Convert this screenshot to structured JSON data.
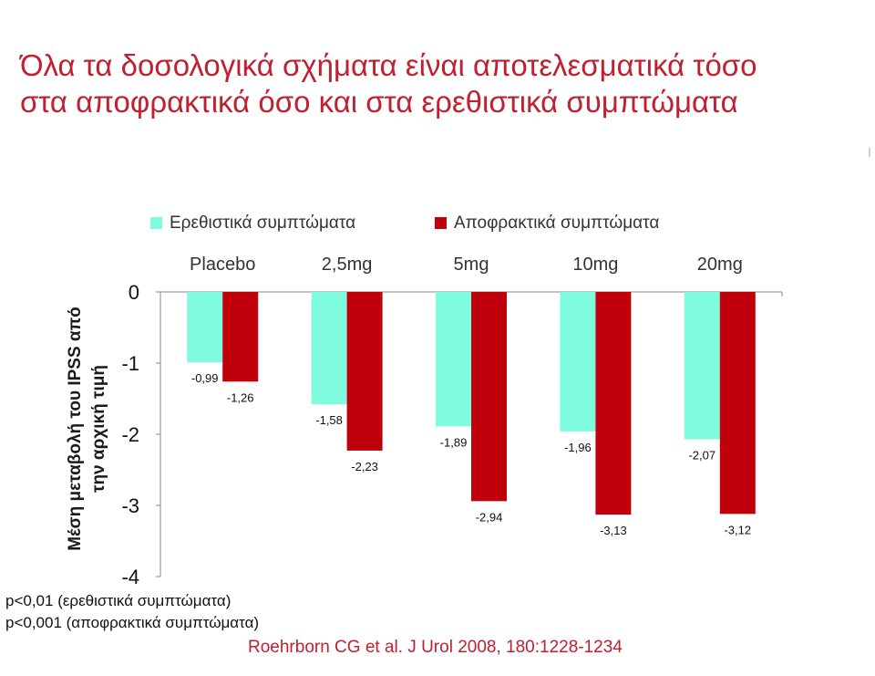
{
  "slide": {
    "title_line1": "Όλα τα δοσολογικά σχήματα είναι αποτελεσματικά τόσο",
    "title_line2": "στα αποφρακτικά όσο και στα ερεθιστικά συμπτώματα",
    "footnote_line1": "p<0,01 (ερεθιστικά συμπτώματα)",
    "footnote_line2": "p<0,001 (αποφρακτικά συμπτώματα)",
    "citation": "Roehrborn CG et al. J Urol 2008, 180:1228-1234"
  },
  "chart_data": {
    "type": "bar",
    "categories": [
      "Placebo",
      "2,5mg",
      "5mg",
      "10mg",
      "20mg"
    ],
    "series": [
      {
        "name": "Ερεθιστικά συμπτώματα",
        "color": "#7ffbe0",
        "values": [
          -0.99,
          -1.58,
          -1.89,
          -1.96,
          -2.07
        ],
        "labels": [
          "-0,99",
          "-1,58",
          "-1,89",
          "-1,96",
          "-2,07"
        ]
      },
      {
        "name": "Αποφρακτικά συμπτώματα",
        "color": "#c0000b",
        "values": [
          -1.26,
          -2.23,
          -2.94,
          -3.13,
          -3.12
        ],
        "labels": [
          "-1,26",
          "-2,23",
          "-2,94",
          "-3,13",
          "-3,12"
        ]
      }
    ],
    "ylabel_line1": "Μέση μεταβολή του IPSS από",
    "ylabel_line2": "την αρχική τιμή",
    "xlabel": "",
    "ylim": [
      -4,
      0
    ],
    "yticks": [
      0,
      -1,
      -2,
      -3,
      -4
    ],
    "ytick_labels": [
      "0",
      "-1",
      "-2",
      "-3",
      "-4"
    ],
    "category_axis_position": "top",
    "legend_position": "top",
    "grid": false
  }
}
